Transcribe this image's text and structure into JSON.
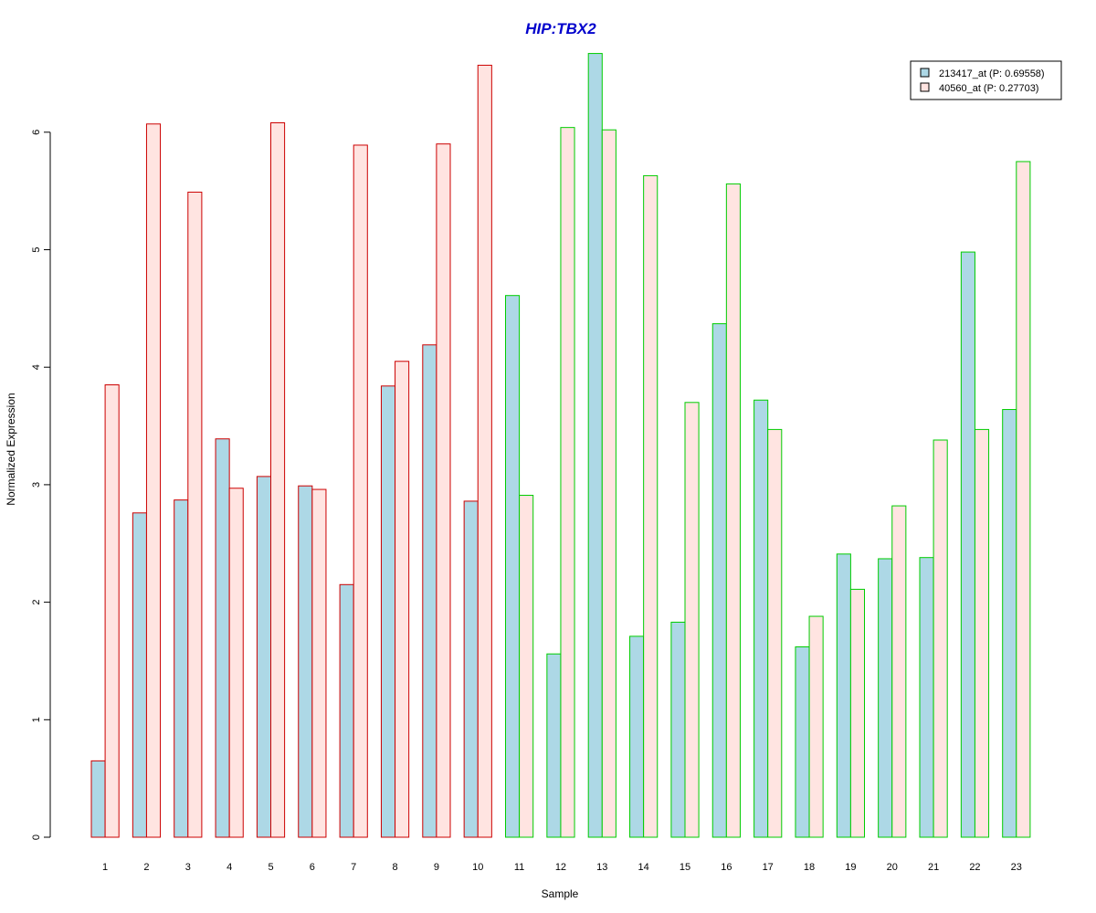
{
  "chart_data": {
    "type": "bar",
    "title": "HIP:TBX2",
    "xlabel": "Sample",
    "ylabel": "Normalized Expression",
    "ylim": [
      0,
      6.7
    ],
    "yticks": [
      0,
      1,
      2,
      3,
      4,
      5,
      6
    ],
    "categories": [
      "1",
      "2",
      "3",
      "4",
      "5",
      "6",
      "7",
      "8",
      "9",
      "10",
      "11",
      "12",
      "13",
      "14",
      "15",
      "16",
      "17",
      "18",
      "19",
      "20",
      "21",
      "22",
      "23"
    ],
    "group_colors": [
      "#cc0000",
      "#cc0000",
      "#cc0000",
      "#cc0000",
      "#cc0000",
      "#cc0000",
      "#cc0000",
      "#cc0000",
      "#cc0000",
      "#cc0000",
      "#00cc00",
      "#00cc00",
      "#00cc00",
      "#00cc00",
      "#00cc00",
      "#00cc00",
      "#00cc00",
      "#00cc00",
      "#00cc00",
      "#00cc00",
      "#00cc00",
      "#00cc00",
      "#00cc00"
    ],
    "series": [
      {
        "name": "213417_at (P: 0.69558)",
        "fill": "#add8e6",
        "values": [
          0.65,
          2.76,
          2.87,
          3.39,
          3.07,
          2.99,
          2.15,
          3.84,
          4.19,
          2.86,
          4.61,
          1.56,
          6.67,
          1.71,
          1.83,
          4.37,
          3.72,
          1.62,
          2.41,
          2.37,
          2.38,
          4.98,
          3.64
        ]
      },
      {
        "name": "40560_at (P: 0.27703)",
        "fill": "#ffe4e1",
        "values": [
          3.85,
          6.07,
          5.49,
          2.97,
          6.08,
          2.96,
          5.89,
          4.05,
          5.9,
          6.57,
          2.91,
          6.04,
          6.02,
          5.63,
          3.7,
          5.56,
          3.47,
          1.88,
          2.11,
          2.82,
          3.38,
          3.47,
          5.75
        ]
      }
    ],
    "legend": "top-right",
    "grid": false
  }
}
